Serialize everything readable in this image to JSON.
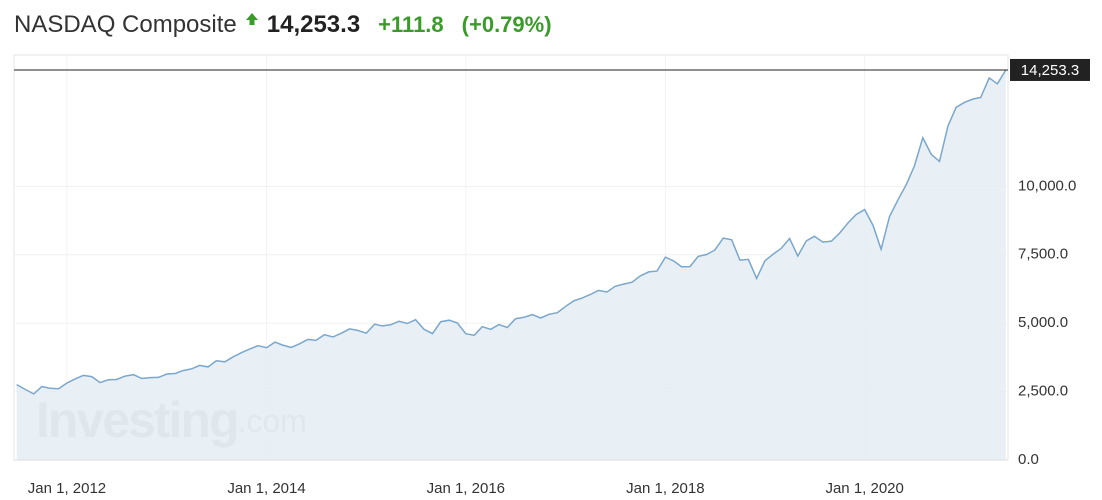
{
  "header": {
    "title": "NASDAQ Composite",
    "change": "+111.8",
    "change_pct": "(+0.79%)"
  },
  "chart_data": {
    "type": "area",
    "x": [
      "2011-07-01",
      "2011-08-01",
      "2011-09-01",
      "2011-10-01",
      "2011-11-01",
      "2011-12-01",
      "2012-01-01",
      "2012-02-01",
      "2012-03-01",
      "2012-04-01",
      "2012-05-01",
      "2012-06-01",
      "2012-07-01",
      "2012-08-01",
      "2012-09-01",
      "2012-10-01",
      "2012-11-01",
      "2012-12-01",
      "2013-01-01",
      "2013-02-01",
      "2013-03-01",
      "2013-04-01",
      "2013-05-01",
      "2013-06-01",
      "2013-07-01",
      "2013-08-01",
      "2013-09-01",
      "2013-10-01",
      "2013-11-01",
      "2013-12-01",
      "2014-01-01",
      "2014-02-01",
      "2014-03-01",
      "2014-04-01",
      "2014-05-01",
      "2014-06-01",
      "2014-07-01",
      "2014-08-01",
      "2014-09-01",
      "2014-10-01",
      "2014-11-01",
      "2014-12-01",
      "2015-01-01",
      "2015-02-01",
      "2015-03-01",
      "2015-04-01",
      "2015-05-01",
      "2015-06-01",
      "2015-07-01",
      "2015-08-01",
      "2015-09-01",
      "2015-10-01",
      "2015-11-01",
      "2015-12-01",
      "2016-01-01",
      "2016-02-01",
      "2016-03-01",
      "2016-04-01",
      "2016-05-01",
      "2016-06-01",
      "2016-07-01",
      "2016-08-01",
      "2016-09-01",
      "2016-10-01",
      "2016-11-01",
      "2016-12-01",
      "2017-01-01",
      "2017-02-01",
      "2017-03-01",
      "2017-04-01",
      "2017-05-01",
      "2017-06-01",
      "2017-07-01",
      "2017-08-01",
      "2017-09-01",
      "2017-10-01",
      "2017-11-01",
      "2017-12-01",
      "2018-01-01",
      "2018-02-01",
      "2018-03-01",
      "2018-04-01",
      "2018-05-01",
      "2018-06-01",
      "2018-07-01",
      "2018-08-01",
      "2018-09-01",
      "2018-10-01",
      "2018-11-01",
      "2018-12-01",
      "2019-01-01",
      "2019-02-01",
      "2019-03-01",
      "2019-04-01",
      "2019-05-01",
      "2019-06-01",
      "2019-07-01",
      "2019-08-01",
      "2019-09-01",
      "2019-10-01",
      "2019-11-01",
      "2019-12-01",
      "2020-01-01",
      "2020-02-01",
      "2020-03-01",
      "2020-04-01",
      "2020-05-01",
      "2020-06-01",
      "2020-07-01",
      "2020-08-01",
      "2020-09-01",
      "2020-10-01",
      "2020-11-01",
      "2020-12-01",
      "2021-01-01",
      "2021-02-01",
      "2021-03-01",
      "2021-04-01",
      "2021-05-01",
      "2021-06-01"
    ],
    "values": [
      2756,
      2579,
      2415,
      2684,
      2620,
      2605,
      2814,
      2967,
      3092,
      3046,
      2827,
      2935,
      2940,
      3067,
      3116,
      2977,
      3010,
      3020,
      3142,
      3160,
      3268,
      3329,
      3456,
      3403,
      3626,
      3590,
      3771,
      3920,
      4060,
      4177,
      4104,
      4308,
      4199,
      4115,
      4243,
      4408,
      4370,
      4580,
      4493,
      4631,
      4792,
      4736,
      4635,
      4964,
      4901,
      4941,
      5070,
      4987,
      5128,
      4777,
      4620,
      5054,
      5109,
      5007,
      4614,
      4558,
      4870,
      4775,
      4948,
      4843,
      5162,
      5213,
      5312,
      5189,
      5324,
      5383,
      5615,
      5825,
      5912,
      6048,
      6199,
      6140,
      6348,
      6429,
      6496,
      6728,
      6874,
      6903,
      7411,
      7273,
      7063,
      7066,
      7442,
      7510,
      7672,
      8110,
      8046,
      7306,
      7331,
      6635,
      7282,
      7533,
      7729,
      8095,
      7453,
      8006,
      8175,
      7963,
      7999,
      8292,
      8665,
      8973,
      9151,
      8567,
      7700,
      8890,
      9490,
      10058,
      10745,
      11775,
      11168,
      10912,
      12199,
      12888,
      13070,
      13192,
      13247,
      13962,
      13749,
      14253.3
    ],
    "color": "#7ba7cc",
    "fill": "#e4edf4",
    "xlim": [
      "2011-06-21",
      "2021-06-09"
    ],
    "xticks": [
      {
        "value": "2012-01-01",
        "label": "Jan 1, 2012"
      },
      {
        "value": "2014-01-01",
        "label": "Jan 1, 2014"
      },
      {
        "value": "2016-01-01",
        "label": "Jan 1, 2016"
      },
      {
        "value": "2018-01-01",
        "label": "Jan 1, 2018"
      },
      {
        "value": "2020-01-01",
        "label": "Jan 1, 2020"
      }
    ],
    "ylim": [
      0,
      14800
    ],
    "yticks": [
      {
        "value": 0,
        "label": "0.0"
      },
      {
        "value": 2500,
        "label": "2,500.0"
      },
      {
        "value": 5000,
        "label": "5,000.0"
      },
      {
        "value": 7500,
        "label": "7,500.0"
      },
      {
        "value": 10000,
        "label": "10,000.0"
      }
    ],
    "last_price": {
      "value": 14253.3,
      "label": "14,253.3"
    },
    "watermark": {
      "brand": "Investing",
      "suffix": ".com"
    },
    "grid": true
  }
}
